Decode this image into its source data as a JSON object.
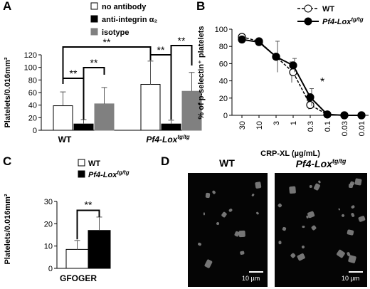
{
  "panels": {
    "A": {
      "letter": "A"
    },
    "B": {
      "letter": "B"
    },
    "C": {
      "letter": "C"
    },
    "D": {
      "letter": "D"
    }
  },
  "chart_data": [
    {
      "id": "A",
      "type": "bar",
      "ylabel": "Platelets/0.016mm²",
      "ylim": [
        0,
        120
      ],
      "yticks": [
        0,
        20,
        40,
        60,
        80,
        100,
        120
      ],
      "categories": [
        "WT",
        "Pf4-Lox"
      ],
      "category_sup": [
        "",
        "tg/tg"
      ],
      "legend": [
        "no antibody",
        "anti-integrin α₂",
        "isotype"
      ],
      "series": [
        {
          "name": "no antibody",
          "color": "#ffffff",
          "values": [
            39,
            73
          ],
          "errors": [
            22,
            37
          ]
        },
        {
          "name": "anti-integrin α₂",
          "color": "#000000",
          "values": [
            10,
            10
          ],
          "errors": [
            7,
            6
          ]
        },
        {
          "name": "isotype",
          "color": "#808080",
          "values": [
            42,
            62
          ],
          "errors": [
            26,
            30
          ]
        }
      ],
      "significance": [
        "**",
        "**",
        "**",
        "**",
        "**"
      ]
    },
    {
      "id": "B",
      "type": "line",
      "xlabel": "CRP-XL (µg/mL)",
      "ylabel": "% of p-selectin⁺ platelets",
      "ylim": [
        0,
        100
      ],
      "yticks": [
        0,
        20,
        40,
        60,
        80,
        100
      ],
      "x_tick_labels": [
        "30",
        "10",
        "3",
        "1",
        "0.3",
        "0.1",
        "0.03",
        "0.01"
      ],
      "x": [
        30,
        10,
        3,
        1,
        0.3,
        0.1,
        0.03,
        0.01
      ],
      "series": [
        {
          "name": "WT",
          "style": "open",
          "values": [
            91,
            86,
            68,
            50,
            12,
            1,
            0,
            0
          ],
          "errors": [
            0,
            0,
            0,
            12,
            5,
            0,
            0,
            0
          ]
        },
        {
          "name": "Pf4-Lox",
          "sup": "tg/tg",
          "style": "filled",
          "values": [
            88,
            85,
            68,
            58,
            21,
            1,
            0,
            0
          ],
          "errors": [
            0,
            0,
            18,
            8,
            10,
            0,
            0,
            0
          ]
        }
      ],
      "significance": [
        "*"
      ]
    },
    {
      "id": "C",
      "type": "bar",
      "ylabel": "Platelets/0.016mm²",
      "ylim": [
        0,
        30
      ],
      "yticks": [
        0,
        10,
        20,
        30
      ],
      "categories": [
        "GFOGER"
      ],
      "series": [
        {
          "name": "WT",
          "color": "#ffffff",
          "values": [
            8.5
          ],
          "errors": [
            4
          ]
        },
        {
          "name": "Pf4-Lox",
          "sup": "tg/tg",
          "color": "#000000",
          "values": [
            17
          ],
          "errors": [
            6
          ]
        }
      ],
      "significance": [
        "**"
      ]
    }
  ],
  "micrographs": [
    {
      "title": "WT",
      "title_sup": "",
      "scale": "10 µm"
    },
    {
      "title": "Pf4-Lox",
      "title_sup": "tg/tg",
      "scale": "10 µm"
    }
  ]
}
